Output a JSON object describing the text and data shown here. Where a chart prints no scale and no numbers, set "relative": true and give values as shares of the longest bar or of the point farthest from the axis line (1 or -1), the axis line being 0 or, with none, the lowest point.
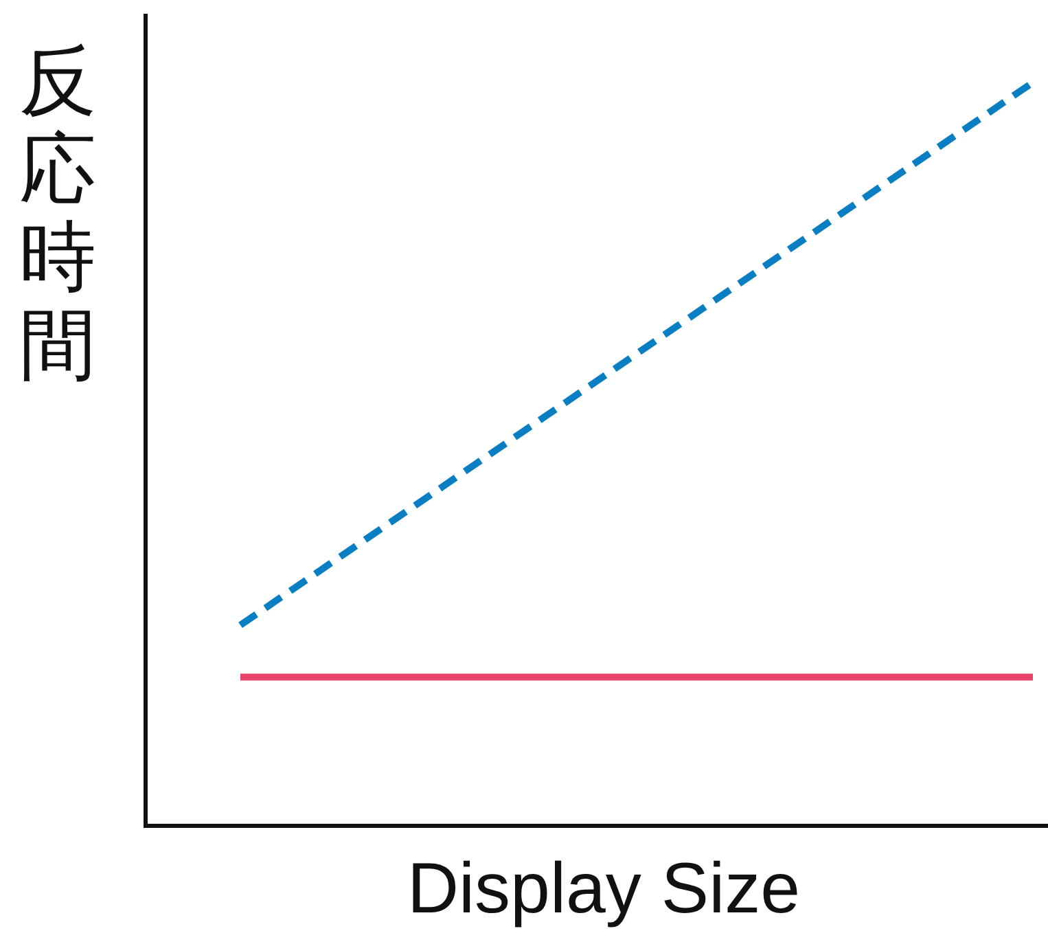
{
  "chart_data": {
    "type": "line",
    "relative": true,
    "xlabel": "Display Size",
    "ylabel": "反応時間",
    "categories": [
      null,
      null
    ],
    "series": [
      {
        "color": "#0a7ec2",
        "line_style": "dashed",
        "values": [
          0.27,
          1
        ]
      },
      {
        "color": "#e8436a",
        "line_style": "solid",
        "values": [
          0.2,
          0.2
        ]
      }
    ]
  }
}
